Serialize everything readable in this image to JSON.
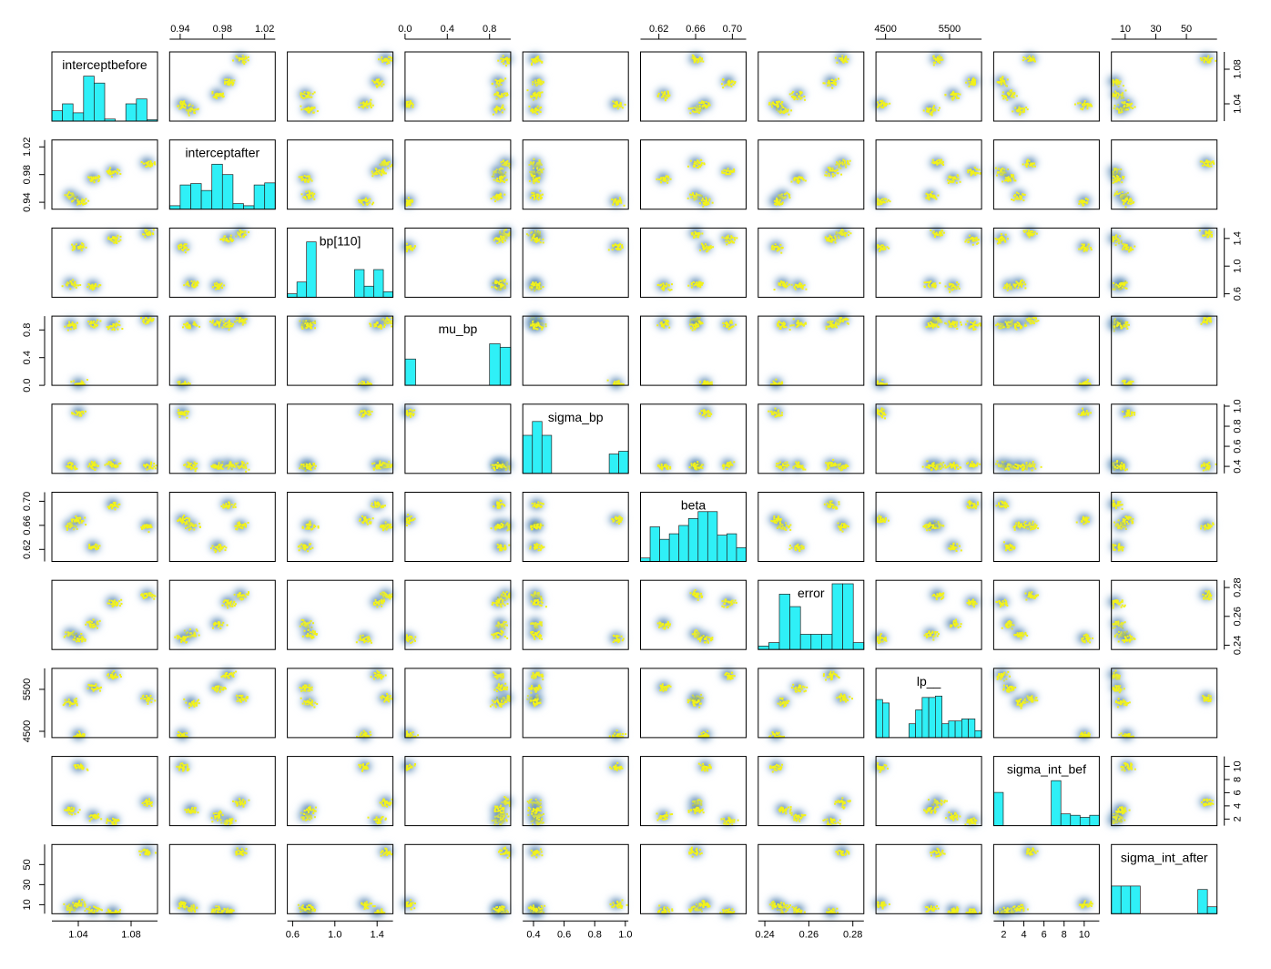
{
  "chart_data": {
    "type": "scatter",
    "title": "",
    "layout": "pairs-matrix",
    "variables": [
      "interceptbefore",
      "interceptafter",
      "bp[110]",
      "mu_bp",
      "sigma_bp",
      "beta",
      "error",
      "lp__",
      "sigma_int_bef",
      "sigma_int_after"
    ],
    "axis_ranges": [
      [
        1.02,
        1.1
      ],
      [
        0.93,
        1.03
      ],
      [
        0.55,
        1.55
      ],
      [
        0.0,
        1.0
      ],
      [
        0.33,
        1.02
      ],
      [
        0.6,
        0.715
      ],
      [
        0.237,
        0.285
      ],
      [
        4350,
        6000
      ],
      [
        1.0,
        11.5
      ],
      [
        1,
        70
      ]
    ],
    "axis_ticks": [
      [
        "1.04",
        "1.08"
      ],
      [
        "0.94",
        "0.98",
        "1.02"
      ],
      [
        "0.6",
        "1.0",
        "1.4"
      ],
      [
        "0.0",
        "0.4",
        "0.8"
      ],
      [
        "0.4",
        "0.6",
        "0.8",
        "1.0"
      ],
      [
        "0.62",
        "0.66",
        "0.70"
      ],
      [
        "0.24",
        "0.26",
        "0.28"
      ],
      [
        "4500",
        "5500"
      ],
      [
        "2",
        "4",
        "6",
        "8",
        "10"
      ],
      [
        "10",
        "30",
        "50"
      ]
    ],
    "tick_values": [
      [
        1.04,
        1.08
      ],
      [
        0.94,
        0.98,
        1.02
      ],
      [
        0.6,
        1.0,
        1.4
      ],
      [
        0.0,
        0.4,
        0.8
      ],
      [
        0.4,
        0.6,
        0.8,
        1.0
      ],
      [
        0.62,
        0.66,
        0.7
      ],
      [
        0.24,
        0.26,
        0.28
      ],
      [
        4500,
        5500
      ],
      [
        2,
        4,
        6,
        8,
        10
      ],
      [
        10,
        30,
        50
      ]
    ],
    "top_axis_columns": [
      1,
      3,
      5,
      7,
      9
    ],
    "bottom_axis_columns": [
      0,
      2,
      4,
      6,
      8
    ],
    "left_axis_rows": [
      1,
      3,
      5,
      7,
      9
    ],
    "right_axis_rows": [
      0,
      2,
      4,
      6,
      8
    ],
    "histograms": [
      [
        0.15,
        0.25,
        0.12,
        0.65,
        0.55,
        0.03,
        0.0,
        0.25,
        0.32,
        0.02
      ],
      [
        0.05,
        0.35,
        0.37,
        0.27,
        0.65,
        0.5,
        0.08,
        0.05,
        0.35,
        0.38
      ],
      [
        0.05,
        0.22,
        0.8,
        0.0,
        0.0,
        0.0,
        0.0,
        0.4,
        0.16,
        0.4,
        0.08
      ],
      [
        0.38,
        0.0,
        0.0,
        0.0,
        0.0,
        0.0,
        0.0,
        0.0,
        0.6,
        0.55
      ],
      [
        0.55,
        0.75,
        0.55,
        0.0,
        0.0,
        0.0,
        0.0,
        0.0,
        0.0,
        0.28,
        0.32
      ],
      [
        0.05,
        0.5,
        0.32,
        0.4,
        0.52,
        0.62,
        0.72,
        0.72,
        0.38,
        0.4,
        0.2
      ],
      [
        0.05,
        0.1,
        0.8,
        0.62,
        0.22,
        0.22,
        0.22,
        0.95,
        0.95,
        0.1
      ],
      [
        0.55,
        0.5,
        0.0,
        0.0,
        0.0,
        0.2,
        0.4,
        0.58,
        0.58,
        0.6,
        0.2,
        0.24,
        0.24,
        0.27,
        0.27,
        0.1
      ],
      [
        0.48,
        0.0,
        0.0,
        0.0,
        0.0,
        0.0,
        0.65,
        0.17,
        0.15,
        0.12,
        0.15
      ],
      [
        0.4,
        0.4,
        0.4,
        0.0,
        0.0,
        0.0,
        0.0,
        0.0,
        0.0,
        0.35,
        0.1
      ]
    ],
    "modes": [
      [
        1.092,
        0.997,
        1.48,
        0.95,
        0.41,
        0.66,
        0.275,
        5300,
        4.6,
        63
      ],
      [
        1.066,
        0.985,
        1.4,
        0.88,
        0.42,
        0.695,
        0.27,
        5850,
        1.8,
        3
      ],
      [
        1.051,
        0.975,
        0.72,
        0.9,
        0.41,
        0.625,
        0.255,
        5550,
        2.5,
        5
      ],
      [
        1.034,
        0.95,
        0.75,
        0.88,
        0.41,
        0.66,
        0.248,
        5200,
        3.5,
        7
      ],
      [
        1.04,
        0.942,
        1.28,
        0.01,
        0.94,
        0.67,
        0.245,
        4420,
        10.0,
        11
      ]
    ]
  }
}
